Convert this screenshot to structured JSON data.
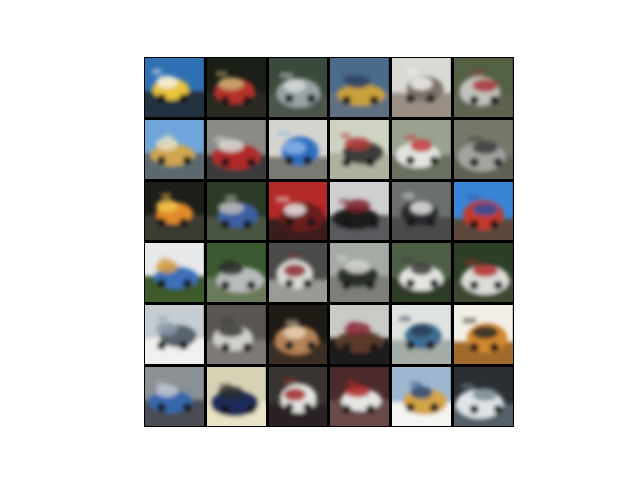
{
  "figure": {
    "rows": 6,
    "cols": 6,
    "tiles": [
      {
        "subject": "yellow-toy-car-on-blue-sky",
        "bg": "#2f6fb3",
        "mid": "#e8c33a",
        "fg": "#f3f0e2",
        "ground": "#203040"
      },
      {
        "subject": "red-car-close-up",
        "bg": "#1a1f18",
        "mid": "#b5302a",
        "fg": "#c9b070",
        "ground": "#2a2a22"
      },
      {
        "subject": "silver-car-side",
        "bg": "#3b4a3c",
        "mid": "#9aa3a6",
        "fg": "#d6dadb",
        "ground": "#4c554a"
      },
      {
        "subject": "yellow-blue-vehicle",
        "bg": "#4b6a8c",
        "mid": "#c9a23a",
        "fg": "#2f3f63",
        "ground": "#607080"
      },
      {
        "subject": "white-truck-front",
        "bg": "#d9d9d6",
        "mid": "#7d726a",
        "fg": "#f2f2ef",
        "ground": "#9a8f85"
      },
      {
        "subject": "white-car-in-lot",
        "bg": "#536044",
        "mid": "#c2c3bd",
        "fg": "#a83434",
        "ground": "#5d6350"
      },
      {
        "subject": "yellow-car-blue-sky",
        "bg": "#6fa5d8",
        "mid": "#d1a64f",
        "fg": "#e8dfc2",
        "ground": "#5c6a6f"
      },
      {
        "subject": "red-car-interior",
        "bg": "#8a8a86",
        "mid": "#b12a2a",
        "fg": "#dcdcdc",
        "ground": "#3a3a3a"
      },
      {
        "subject": "blue-pickup",
        "bg": "#d5d5d0",
        "mid": "#2f6fc0",
        "fg": "#8ab5e6",
        "ground": "#7a7a74"
      },
      {
        "subject": "dark-vehicle-on-light",
        "bg": "#cfd3c2",
        "mid": "#3d3d3a",
        "fg": "#b13a3a",
        "ground": "#aeb19d"
      },
      {
        "subject": "white-truck-cab",
        "bg": "#9aa390",
        "mid": "#e3e5e0",
        "fg": "#c23a3a",
        "ground": "#6b705f"
      },
      {
        "subject": "grey-truck",
        "bg": "#75776a",
        "mid": "#a4a3a0",
        "fg": "#3b3b38",
        "ground": "#5f6055"
      },
      {
        "subject": "orange-car-dark-bg",
        "bg": "#1d1d1a",
        "mid": "#e08a2a",
        "fg": "#f2c24a",
        "ground": "#3a3a33"
      },
      {
        "subject": "blue-car-forest",
        "bg": "#2d3a26",
        "mid": "#3c5fa3",
        "fg": "#bcbcb8",
        "ground": "#4a5540"
      },
      {
        "subject": "red-car-showroom",
        "bg": "#b42a2a",
        "mid": "#6b1a1a",
        "fg": "#e8e8e6",
        "ground": "#3a1a1a"
      },
      {
        "subject": "dark-suv",
        "bg": "#cfcfd2",
        "mid": "#1b1b1f",
        "fg": "#7a1f2a",
        "ground": "#5a5a5e"
      },
      {
        "subject": "dark-truck-front",
        "bg": "#6c6f70",
        "mid": "#2b2c2e",
        "fg": "#e6e6e6",
        "ground": "#4a4b4c"
      },
      {
        "subject": "blue-red-truck-sky",
        "bg": "#3a86d6",
        "mid": "#c23a2a",
        "fg": "#2d4f9a",
        "ground": "#5a4a3a"
      },
      {
        "subject": "blue-car-white-bg",
        "bg": "#e6e8ea",
        "mid": "#3c6fb8",
        "fg": "#d49a3a",
        "ground": "#3d5a2a"
      },
      {
        "subject": "silver-car-trees",
        "bg": "#3c5a32",
        "mid": "#b9bcbc",
        "fg": "#2a2a2a",
        "ground": "#6a7a5a"
      },
      {
        "subject": "white-van",
        "bg": "#4a4a48",
        "mid": "#d9d9d6",
        "fg": "#8a2a2a",
        "ground": "#9a9a96"
      },
      {
        "subject": "dark-car-grey-bg",
        "bg": "#a6aaa4",
        "mid": "#2a2e2a",
        "fg": "#dcdcd8",
        "ground": "#7c7f78"
      },
      {
        "subject": "white-suv-green",
        "bg": "#4f5f46",
        "mid": "#e3e5e0",
        "fg": "#3a3a3a",
        "ground": "#2e3a26"
      },
      {
        "subject": "white-red-truck-forest",
        "bg": "#2d3f27",
        "mid": "#dcdcd8",
        "fg": "#b22a2a",
        "ground": "#3c4a32"
      },
      {
        "subject": "grey-vehicle-pale-sky",
        "bg": "#c5ccd2",
        "mid": "#59636e",
        "fg": "#8a9aa8",
        "ground": "#f0f0ee"
      },
      {
        "subject": "wrecked-car",
        "bg": "#595652",
        "mid": "#d0cfcb",
        "fg": "#3a3836",
        "ground": "#7d7975"
      },
      {
        "subject": "tan-van-dark",
        "bg": "#1e1a14",
        "mid": "#b5835a",
        "fg": "#e8d2b0",
        "ground": "#3a2f24"
      },
      {
        "subject": "face-like-car",
        "bg": "#c9c9c6",
        "mid": "#5a3a2a",
        "fg": "#8a2a3a",
        "ground": "#1a1a1c"
      },
      {
        "subject": "blue-car-pale",
        "bg": "#dfe3df",
        "mid": "#3d6d92",
        "fg": "#2a3d55",
        "ground": "#a5aca5"
      },
      {
        "subject": "orange-car-white",
        "bg": "#f2efe6",
        "mid": "#d2872f",
        "fg": "#2a2a2a",
        "ground": "#a26a2a"
      },
      {
        "subject": "blue-sedan-grey",
        "bg": "#8a9094",
        "mid": "#3468ad",
        "fg": "#bfc8d2",
        "ground": "#4a4e52"
      },
      {
        "subject": "blue-car-shadow",
        "bg": "#d8d2b5",
        "mid": "#1c2a5a",
        "fg": "#2a2a2a",
        "ground": "#eae4c6"
      },
      {
        "subject": "person-with-car",
        "bg": "#3a3430",
        "mid": "#e3e3e0",
        "fg": "#a52a2a",
        "ground": "#2a2420"
      },
      {
        "subject": "red-white-van",
        "bg": "#4a2a2a",
        "mid": "#e5e5e2",
        "fg": "#b22a2a",
        "ground": "#6a4a4a"
      },
      {
        "subject": "orange-vehicle-white",
        "bg": "#9fb6cf",
        "mid": "#d5a54a",
        "fg": "#2a4a7a",
        "ground": "#f4f4f2"
      },
      {
        "subject": "white-car-dark",
        "bg": "#2a2f33",
        "mid": "#dfe4e8",
        "fg": "#7a8892",
        "ground": "#55606a"
      }
    ]
  }
}
